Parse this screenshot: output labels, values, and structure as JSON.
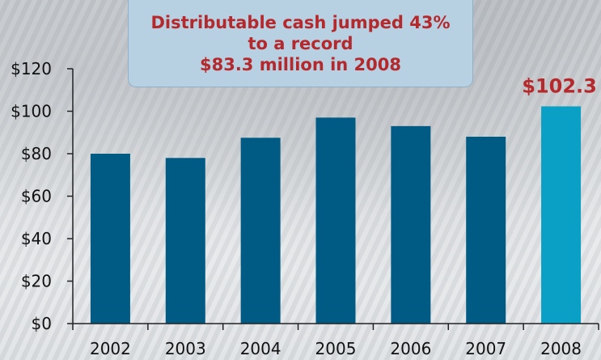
{
  "callout": {
    "line1": "Distributable cash jumped 43%",
    "line2": "to a record",
    "line3": "$83.3 million in 2008"
  },
  "chart_data": {
    "type": "bar",
    "categories": [
      "2002",
      "2003",
      "2004",
      "2005",
      "2006",
      "2007",
      "2008"
    ],
    "values": [
      80,
      78,
      87.5,
      97,
      93,
      88,
      102.3
    ],
    "ylim": [
      0,
      120
    ],
    "yticks": [
      "$0",
      "$20",
      "$40",
      "$60",
      "$80",
      "$100",
      "$120"
    ],
    "value_label": "$102.3",
    "grid": false,
    "colors": {
      "bar": "#005b84",
      "highlight": "#0aa0c6",
      "axis": "#222222",
      "label": "#b5282b"
    }
  }
}
